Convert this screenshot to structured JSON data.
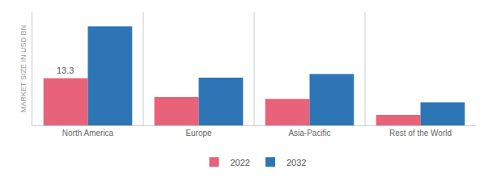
{
  "chart_data": {
    "type": "bar",
    "categories": [
      "North America",
      "Europe",
      "Asia-Pacific",
      "Rest of the World"
    ],
    "series": [
      {
        "name": "2022",
        "color": "#e8627a",
        "values": [
          13.3,
          8.0,
          7.5,
          3.0
        ]
      },
      {
        "name": "2032",
        "color": "#2e75b6",
        "values": [
          28.0,
          13.5,
          14.5,
          6.5
        ]
      }
    ],
    "ylabel": "MARKET SIZE IN USD BN",
    "annotations": [
      "13.3"
    ],
    "ylim": [
      0,
      32
    ],
    "tick_labels": "x",
    "grid": false,
    "legend": "bottom"
  }
}
